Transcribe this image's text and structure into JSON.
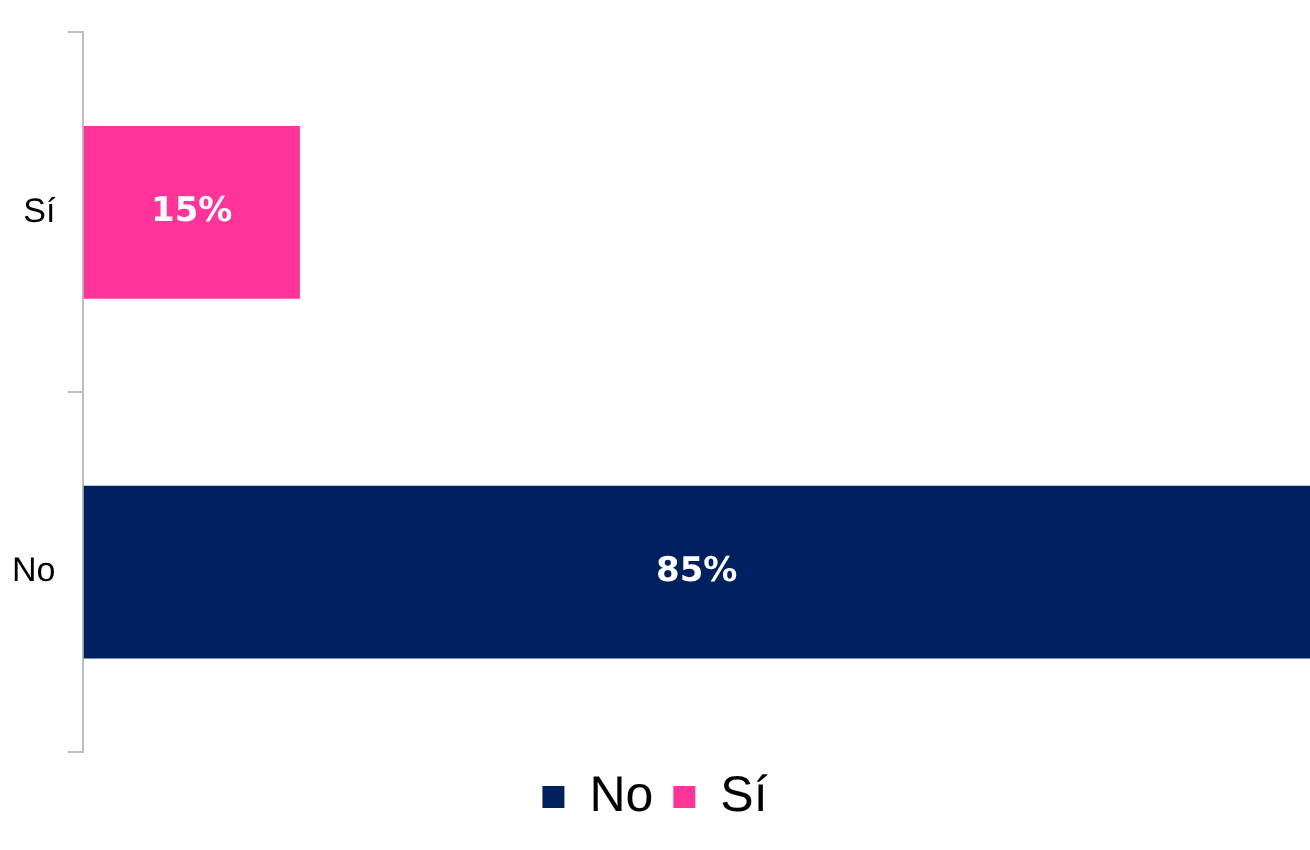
{
  "chart_data": {
    "type": "bar",
    "orientation": "horizontal",
    "stacked": true,
    "categories": [
      "Sí",
      "No"
    ],
    "series": [
      {
        "name": "No",
        "color": "#002060",
        "values": [
          null,
          85
        ],
        "value_labels": [
          null,
          "85%"
        ]
      },
      {
        "name": "Sí",
        "color": "#ff3399",
        "values": [
          15,
          null
        ],
        "value_labels": [
          "15%",
          null
        ]
      }
    ],
    "legend": "bottom"
  }
}
